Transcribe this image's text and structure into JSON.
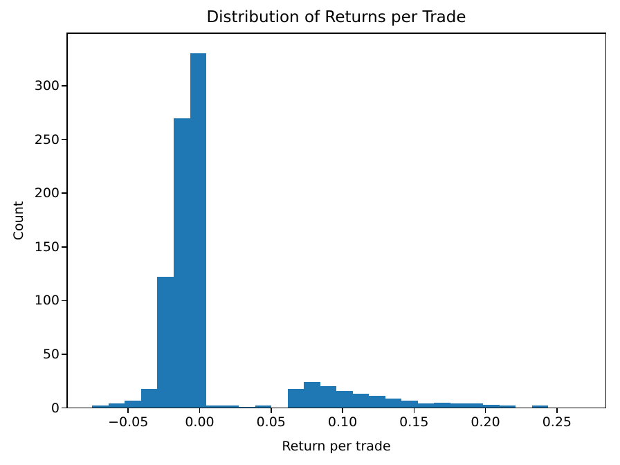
{
  "chart_data": {
    "type": "bar",
    "subtype": "histogram",
    "title": "Distribution of Returns per Trade",
    "xlabel": "Return per trade",
    "ylabel": "Count",
    "bar_color": "#1f77b4",
    "background_color": "#ffffff",
    "spine_color": "#000000",
    "grid": false,
    "legend": false,
    "xlim": [
      -0.0927,
      0.2842
    ],
    "ylim": [
      0,
      349
    ],
    "bins": {
      "start": -0.0751,
      "width": 0.01139,
      "n": 30,
      "note": "counts estimated from pixel heights"
    },
    "counts": [
      2,
      4,
      7,
      18,
      122,
      270,
      330,
      2,
      2,
      1,
      2,
      0,
      18,
      24,
      20,
      16,
      13,
      11,
      9,
      7,
      4,
      5,
      4,
      4,
      3,
      2,
      0,
      2,
      0,
      0
    ],
    "x_ticks": [
      {
        "value": -0.05,
        "label": "−0.05"
      },
      {
        "value": 0.0,
        "label": "0.00"
      },
      {
        "value": 0.05,
        "label": "0.05"
      },
      {
        "value": 0.1,
        "label": "0.10"
      },
      {
        "value": 0.15,
        "label": "0.15"
      },
      {
        "value": 0.2,
        "label": "0.20"
      },
      {
        "value": 0.25,
        "label": "0.25"
      }
    ],
    "y_ticks": [
      {
        "value": 0,
        "label": "0"
      },
      {
        "value": 50,
        "label": "50"
      },
      {
        "value": 100,
        "label": "100"
      },
      {
        "value": 150,
        "label": "150"
      },
      {
        "value": 200,
        "label": "200"
      },
      {
        "value": 250,
        "label": "250"
      },
      {
        "value": 300,
        "label": "300"
      }
    ]
  }
}
